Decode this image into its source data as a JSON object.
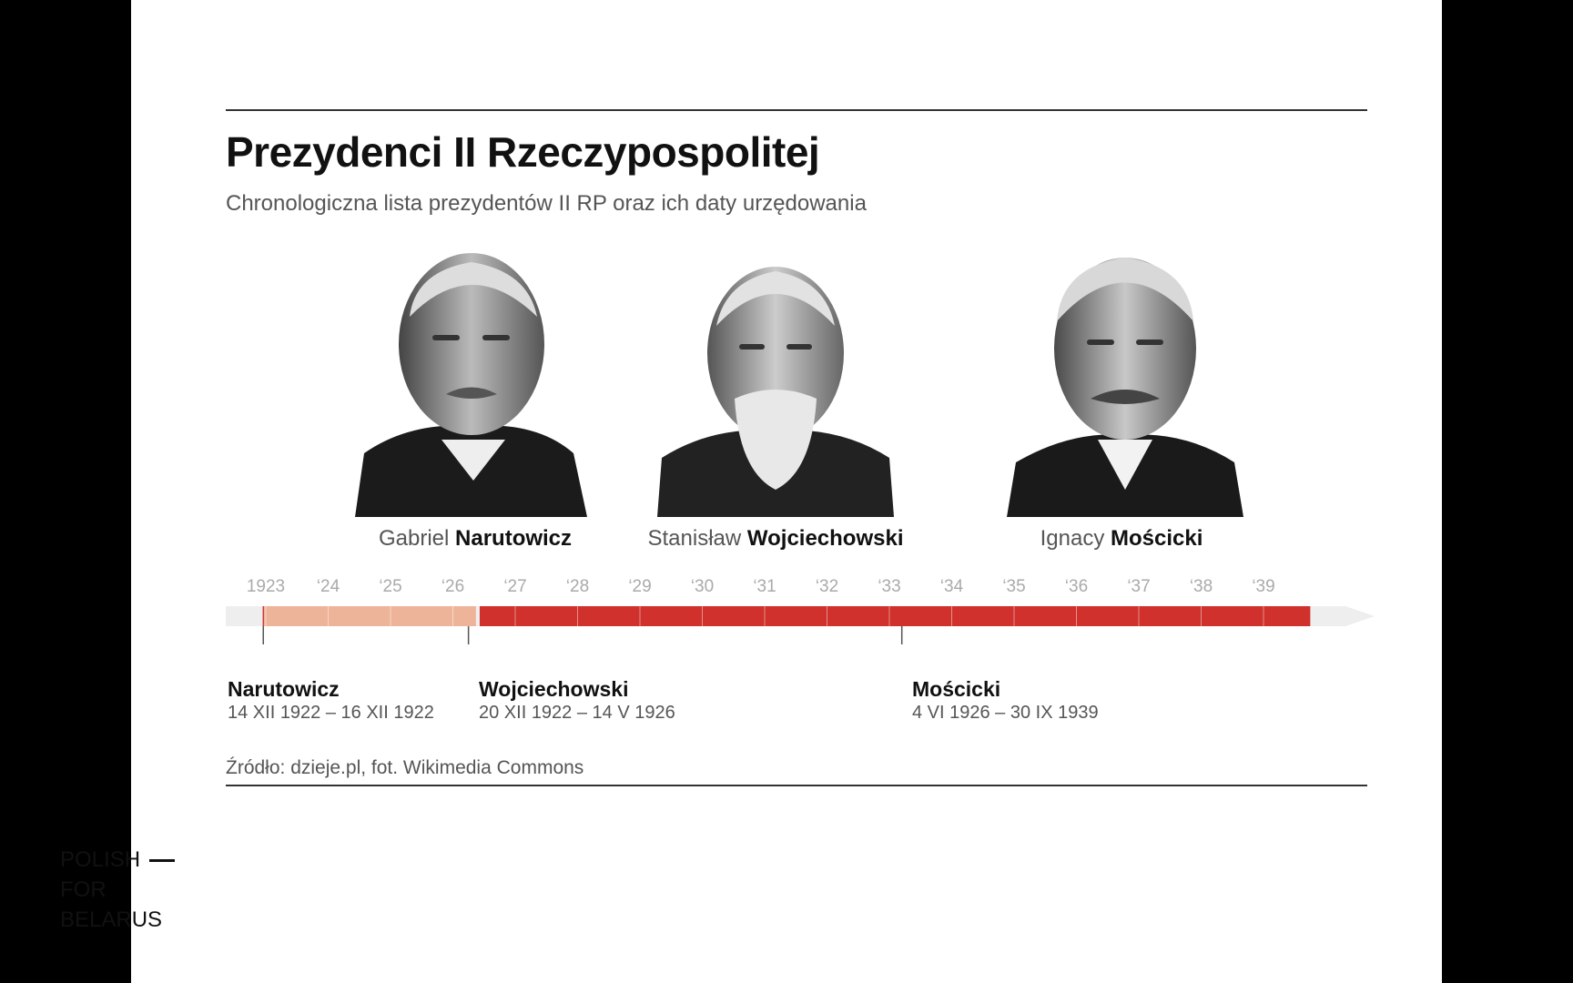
{
  "title": "Prezydenci II Rzeczypospolitej",
  "subtitle": "Chronologiczna lista prezydentów II RP oraz ich daty urzędowania",
  "presidents": [
    {
      "first": "Gabriel",
      "last": "Narutowicz",
      "term": "14 XII 1922 – 16 XII 1922"
    },
    {
      "first": "Stanisław",
      "last": "Wojciechowski",
      "term": "20 XII 1922 – 14 V 1926"
    },
    {
      "first": "Ignacy",
      "last": "Mościcki",
      "term": "4 VI 1926 – 30 IX 1939"
    }
  ],
  "timeline": {
    "ticks": [
      "1923",
      "‘24",
      "‘25",
      "‘26",
      "‘27",
      "‘28",
      "‘29",
      "‘30",
      "‘31",
      "‘32",
      "‘33",
      "‘34",
      "‘35",
      "‘36",
      "‘37",
      "‘38",
      "‘39"
    ],
    "periods": [
      {
        "name": "Narutowicz",
        "start": 1922.95,
        "end": 1922.96,
        "color": "#d0312d"
      },
      {
        "name": "Wojciechowski",
        "start": 1922.97,
        "end": 1926.37,
        "color": "#eeb49a"
      },
      {
        "name": "Mościcki",
        "start": 1926.43,
        "end": 1939.75,
        "color": "#d0312d"
      }
    ],
    "colors": {
      "track": "#eeeeee",
      "tick_label": "#aaaaaa"
    }
  },
  "source": "Źródło: dzieje.pl, fot. Wikimedia Commons",
  "brand": {
    "line1": "POLISH",
    "line2": "FOR",
    "line3": "BELARUS"
  }
}
